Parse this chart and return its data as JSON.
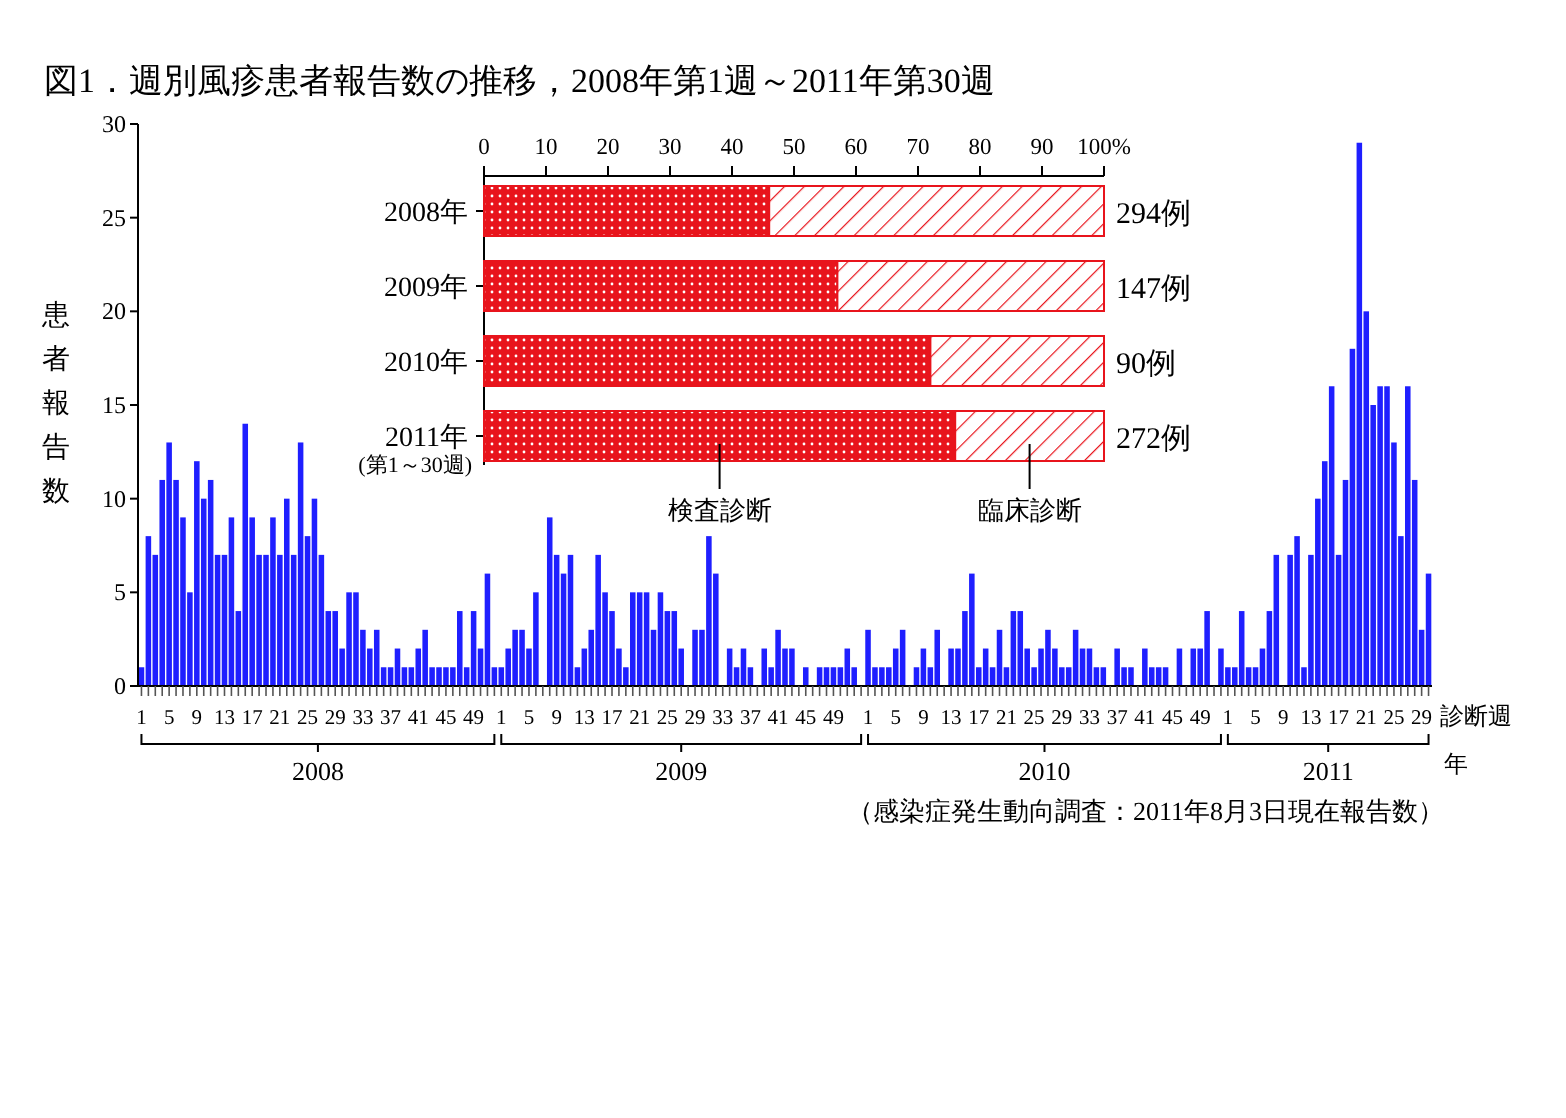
{
  "chart_data": [
    {
      "type": "bar",
      "title": "図1．週別風疹患者報告数の推移，2008年第1週～2011年第30週",
      "ylabel": "患者報告数",
      "xlabel": "診断週",
      "categories": [
        "1",
        null,
        null,
        null,
        "5",
        null,
        null,
        null,
        "9",
        null,
        null,
        null,
        "13",
        null,
        null,
        null,
        "17",
        null,
        null,
        null,
        "21",
        null,
        null,
        null,
        "25",
        null,
        null,
        null,
        "29",
        null,
        null,
        null,
        "33",
        null,
        null,
        null,
        "37",
        null,
        null,
        null,
        "41",
        null,
        null,
        null,
        "45",
        null,
        null,
        null,
        "49",
        null,
        null,
        null,
        "1",
        null,
        null,
        null,
        "5",
        null,
        null,
        null,
        "9",
        null,
        null,
        null,
        "13",
        null,
        null,
        null,
        "17",
        null,
        null,
        null,
        "21",
        null,
        null,
        null,
        "25",
        null,
        null,
        null,
        "29",
        null,
        null,
        null,
        "33",
        null,
        null,
        null,
        "37",
        null,
        null,
        null,
        "41",
        null,
        null,
        null,
        "45",
        null,
        null,
        null,
        "49",
        null,
        null,
        null,
        null,
        "1",
        null,
        null,
        null,
        "5",
        null,
        null,
        null,
        "9",
        null,
        null,
        null,
        "13",
        null,
        null,
        null,
        "17",
        null,
        null,
        null,
        "21",
        null,
        null,
        null,
        "25",
        null,
        null,
        null,
        "29",
        null,
        null,
        null,
        "33",
        null,
        null,
        null,
        "37",
        null,
        null,
        null,
        "41",
        null,
        null,
        null,
        "45",
        null,
        null,
        null,
        "49",
        null,
        null,
        null,
        "1",
        null,
        null,
        null,
        "5",
        null,
        null,
        null,
        "9",
        null,
        null,
        null,
        "13",
        null,
        null,
        null,
        "17",
        null,
        null,
        null,
        "21",
        null,
        null,
        null,
        "25",
        null,
        null,
        null,
        "29",
        null
      ],
      "values": [
        1,
        8,
        7,
        11,
        13,
        11,
        9,
        5,
        12,
        10,
        11,
        7,
        7,
        9,
        4,
        14,
        9,
        7,
        7,
        9,
        7,
        10,
        7,
        13,
        8,
        10,
        7,
        4,
        4,
        2,
        5,
        5,
        3,
        2,
        3,
        1,
        1,
        2,
        1,
        1,
        2,
        3,
        1,
        1,
        1,
        1,
        4,
        1,
        4,
        2,
        6,
        1,
        1,
        2,
        3,
        3,
        2,
        5,
        0,
        9,
        7,
        6,
        7,
        1,
        2,
        3,
        7,
        5,
        4,
        2,
        1,
        5,
        5,
        5,
        3,
        5,
        4,
        4,
        2,
        0,
        3,
        3,
        8,
        6,
        0,
        2,
        1,
        2,
        1,
        0,
        2,
        1,
        3,
        2,
        2,
        0,
        1,
        0,
        1,
        1,
        1,
        1,
        2,
        1,
        0,
        3,
        1,
        1,
        1,
        2,
        3,
        0,
        1,
        2,
        1,
        3,
        0,
        2,
        2,
        4,
        6,
        1,
        2,
        1,
        3,
        1,
        4,
        4,
        2,
        1,
        2,
        3,
        2,
        1,
        1,
        3,
        2,
        2,
        1,
        1,
        0,
        2,
        1,
        1,
        0,
        2,
        1,
        1,
        1,
        0,
        2,
        0,
        2,
        2,
        4,
        0,
        2,
        1,
        1,
        4,
        1,
        1,
        2,
        4,
        7,
        0,
        7,
        8,
        1,
        7,
        10,
        12,
        16,
        7,
        11,
        18,
        29,
        20,
        15,
        16,
        16,
        13,
        8,
        16,
        11,
        3,
        6
      ],
      "color": "#1f1fff",
      "ylim": [
        0,
        30
      ],
      "yticks": [
        0,
        5,
        10,
        15,
        20,
        25,
        30
      ],
      "grid": false,
      "annotations": [
        "2008",
        "2009",
        "2010",
        "2011",
        "年",
        "（感染症発生動向調査：2011年8月3日現在報告数）"
      ]
    },
    {
      "type": "bar",
      "orientation": "horizontal",
      "stacked": true,
      "legend": false,
      "categories": [
        "2008年",
        "2009年",
        "2010年",
        "2011年 (第1～30週)"
      ],
      "series": [
        {
          "name": "検査診断",
          "color": "#e8141c",
          "values": [
            46,
            57,
            72,
            76
          ]
        },
        {
          "name": "臨床診断",
          "color": "#e8141c",
          "values": [
            54,
            43,
            28,
            24
          ]
        }
      ],
      "xlim": [
        0,
        100
      ],
      "xticks": [
        0,
        10,
        20,
        30,
        40,
        50,
        60,
        70,
        80,
        90,
        {
          "value": 100,
          "label": "100%"
        }
      ],
      "annotations": [
        "294例",
        "147例",
        "90例",
        "272例"
      ]
    }
  ]
}
